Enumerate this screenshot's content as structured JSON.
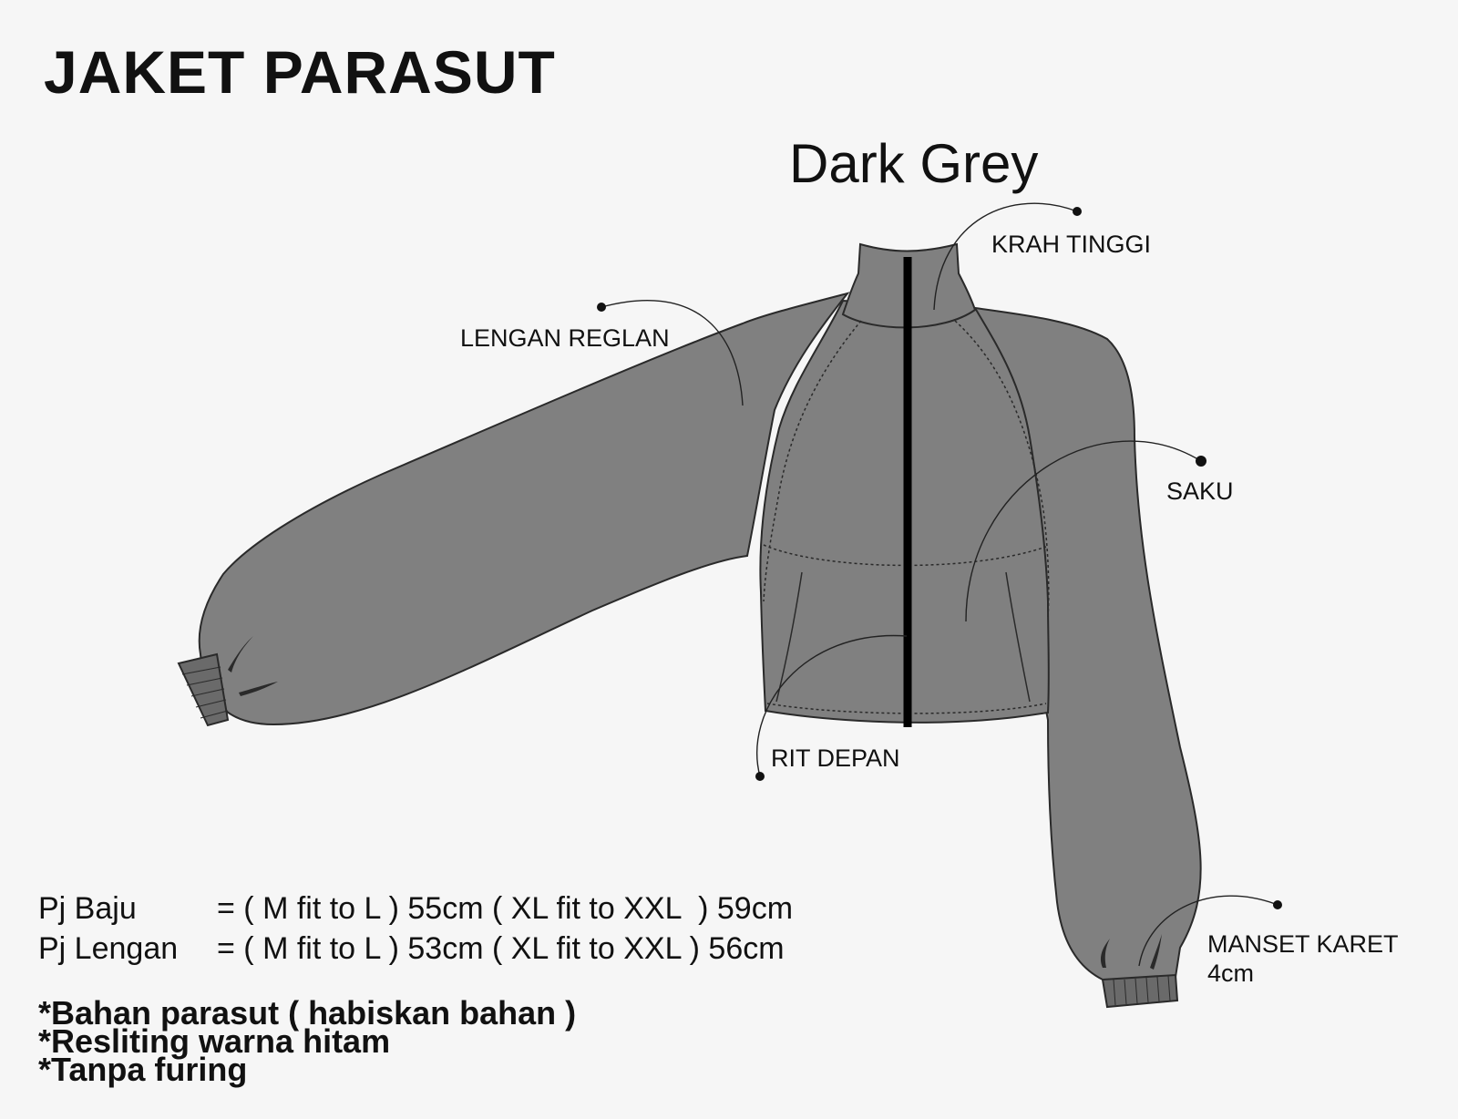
{
  "title": "JAKET PARASUT",
  "color_name": "Dark Grey",
  "colors": {
    "background": "#f6f6f6",
    "jacket_fill": "#808080",
    "outline": "#2a2a2a",
    "zipper": "#000000"
  },
  "callouts": {
    "collar": "KRAH TINGGI",
    "sleeve": "LENGAN REGLAN",
    "pocket": "SAKU",
    "zipper": "RIT DEPAN",
    "cuff_line1": "MANSET KARET",
    "cuff_line2": "4cm"
  },
  "sizes": [
    {
      "label": "Pj Baju",
      "value": "= ( M fit to L ) 55cm ( XL fit to XXL  ) 59cm"
    },
    {
      "label": "Pj Lengan",
      "value": "= ( M fit to L ) 53cm ( XL fit to XXL ) 56cm"
    }
  ],
  "notes": [
    "*Bahan parasut ( habiskan bahan )",
    "*Resliting warna hitam",
    "*Tanpa furing"
  ]
}
